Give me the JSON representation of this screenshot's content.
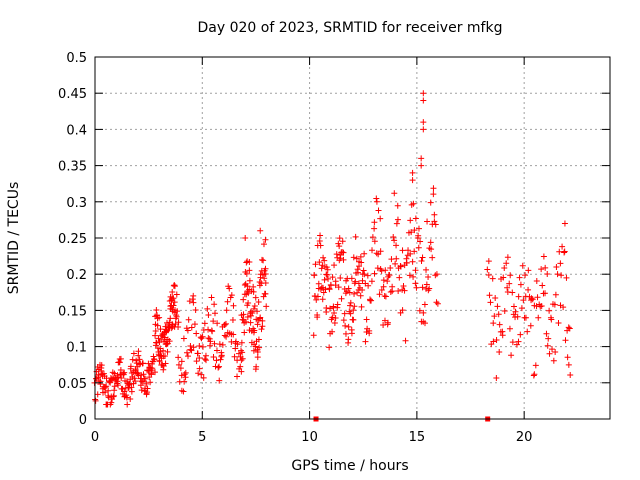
{
  "chart_data": {
    "type": "scatter",
    "title": "Day 020 of 2023, SRMTID for receiver mfkg",
    "xlabel": "GPS time / hours",
    "ylabel": "SRMTID / TECUs",
    "xlim": [
      0,
      24
    ],
    "ylim": [
      0,
      0.5
    ],
    "x_ticks": [
      0,
      5,
      10,
      15,
      20
    ],
    "x_tick_labels": [
      "0",
      "5",
      "10",
      "15",
      "20"
    ],
    "y_ticks": [
      0,
      0.05,
      0.1,
      0.15,
      0.2,
      0.25,
      0.3,
      0.35,
      0.4,
      0.45,
      0.5
    ],
    "y_tick_labels": [
      "0",
      "0.05",
      "0.1",
      "0.15",
      "0.2",
      "0.25",
      "0.3",
      "0.35",
      "0.4",
      "0.45",
      "0.5"
    ],
    "grid": true,
    "marker": "plus",
    "color": "#ff0000",
    "zero_markers": [
      10.3,
      18.3
    ],
    "segments": [
      {
        "start": 0.0,
        "end": 2.8,
        "base_start": 0.04,
        "base_end": 0.07,
        "spread": 0.045,
        "density": 160
      },
      {
        "start": 2.8,
        "end": 3.8,
        "base_start": 0.1,
        "base_end": 0.14,
        "spread": 0.06,
        "density": 90
      },
      {
        "start": 3.8,
        "end": 6.8,
        "base_start": 0.1,
        "base_end": 0.12,
        "spread": 0.08,
        "density": 110
      },
      {
        "start": 6.8,
        "end": 8.0,
        "base_start": 0.13,
        "base_end": 0.17,
        "spread": 0.1,
        "density": 90
      },
      {
        "start": 10.2,
        "end": 12.5,
        "base_start": 0.18,
        "base_end": 0.18,
        "spread": 0.1,
        "density": 120
      },
      {
        "start": 12.5,
        "end": 16.0,
        "base_start": 0.2,
        "base_end": 0.22,
        "spread": 0.13,
        "density": 130
      },
      {
        "start": 18.3,
        "end": 22.2,
        "base_start": 0.15,
        "base_end": 0.16,
        "spread": 0.12,
        "density": 110
      }
    ],
    "outliers": [
      {
        "x": 15.3,
        "y": 0.45
      },
      {
        "x": 15.3,
        "y": 0.44
      },
      {
        "x": 15.3,
        "y": 0.41
      },
      {
        "x": 15.3,
        "y": 0.4
      },
      {
        "x": 15.2,
        "y": 0.36
      },
      {
        "x": 15.2,
        "y": 0.35
      },
      {
        "x": 14.8,
        "y": 0.34
      },
      {
        "x": 14.8,
        "y": 0.33
      },
      {
        "x": 7.0,
        "y": 0.25
      },
      {
        "x": 7.7,
        "y": 0.26
      },
      {
        "x": 21.9,
        "y": 0.27
      }
    ]
  }
}
